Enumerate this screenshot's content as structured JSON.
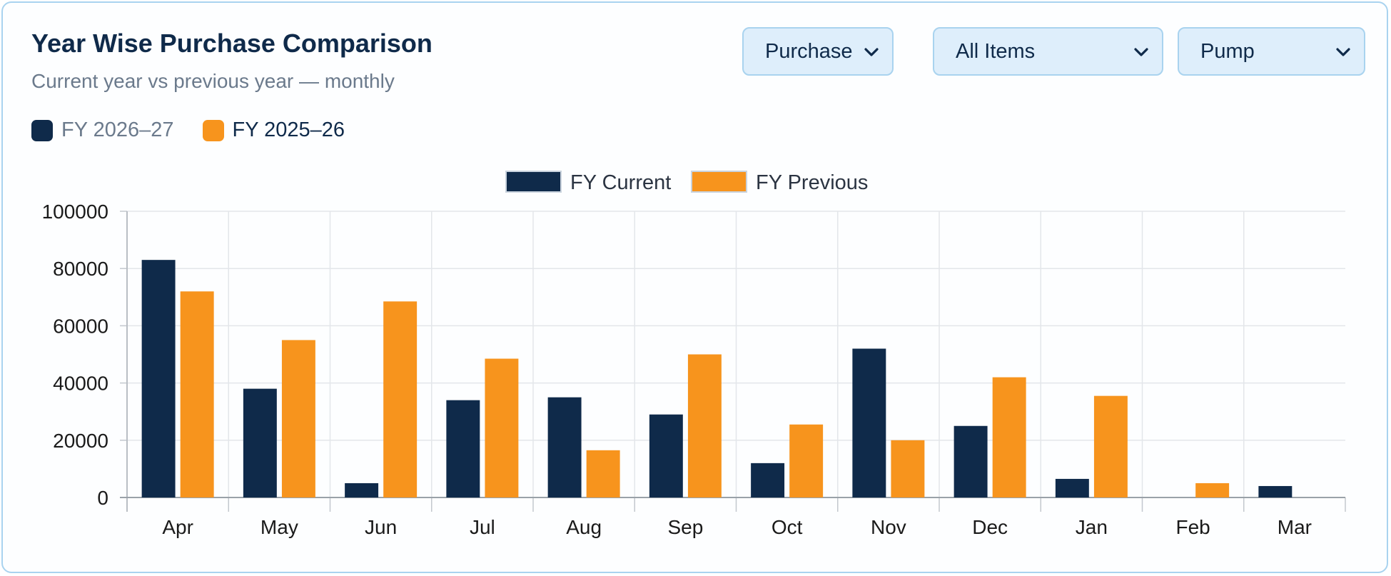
{
  "header": {
    "title": "Year Wise Purchase Comparison",
    "subtitle": "Current year vs previous year — monthly"
  },
  "legend_top": [
    {
      "label": "FY 2026–27",
      "color": "#0f2a4a"
    },
    {
      "label": "FY 2025–26",
      "color": "#f7941d"
    }
  ],
  "filters": {
    "type": "Purchase",
    "items": "All Items",
    "category": "Pump"
  },
  "icons": {
    "dropdown": "chevron-down-icon"
  },
  "colors": {
    "current": "#0f2a4a",
    "previous": "#f7941d",
    "accent_border": "#a9d3ef",
    "select_bg": "#deeefb"
  },
  "chart_data": {
    "type": "bar",
    "title": "",
    "xlabel": "",
    "ylabel": "",
    "ylim": [
      0,
      100000
    ],
    "yticks": [
      0,
      20000,
      40000,
      60000,
      80000,
      100000
    ],
    "grid": true,
    "legend_position": "top-center",
    "categories": [
      "Apr",
      "May",
      "Jun",
      "Jul",
      "Aug",
      "Sep",
      "Oct",
      "Nov",
      "Dec",
      "Jan",
      "Feb",
      "Mar"
    ],
    "series": [
      {
        "name": "FY Current",
        "color": "#0f2a4a",
        "values": [
          83000,
          38000,
          5000,
          34000,
          35000,
          29000,
          12000,
          52000,
          25000,
          6500,
          0,
          4000
        ]
      },
      {
        "name": "FY Previous",
        "color": "#f7941d",
        "values": [
          72000,
          55000,
          68500,
          48500,
          16500,
          50000,
          25500,
          20000,
          42000,
          35500,
          5000,
          0
        ]
      }
    ]
  }
}
